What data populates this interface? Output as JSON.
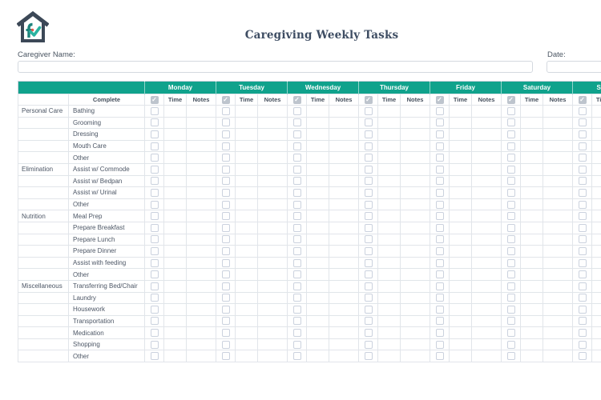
{
  "page": {
    "title": "Caregiving Weekly Tasks"
  },
  "header": {
    "logo_icon": "house-with-check-logo",
    "caregiver_name": {
      "label": "Caregiver Name:",
      "value": ""
    },
    "date": {
      "label": "Date:",
      "value": ""
    }
  },
  "table": {
    "task_column_header": "Complete",
    "days": [
      "Monday",
      "Tuesday",
      "Wednesday",
      "Thursday",
      "Friday",
      "Saturday",
      "Sunday"
    ],
    "day_subcolumns": {
      "complete_icon": "checkmark-icon",
      "time": "Time",
      "notes": "Notes"
    },
    "all_day_cells": {
      "complete_checked": false,
      "time_value": "",
      "notes_value": ""
    },
    "rows": [
      {
        "category": "Personal Care",
        "task": "Bathing"
      },
      {
        "category": "",
        "task": "Grooming"
      },
      {
        "category": "",
        "task": "Dressing"
      },
      {
        "category": "",
        "task": "Mouth Care"
      },
      {
        "category": "",
        "task": "Other"
      },
      {
        "category": "Elimination",
        "task": "Assist w/ Commode"
      },
      {
        "category": "",
        "task": "Assist w/ Bedpan"
      },
      {
        "category": "",
        "task": "Assist w/ Urinal"
      },
      {
        "category": "",
        "task": "Other"
      },
      {
        "category": "Nutrition",
        "task": "Meal Prep"
      },
      {
        "category": "",
        "task": "Prepare Breakfast"
      },
      {
        "category": "",
        "task": "Prepare Lunch"
      },
      {
        "category": "",
        "task": "Prepare Dinner"
      },
      {
        "category": "",
        "task": "Assist with feeding"
      },
      {
        "category": "",
        "task": "Other"
      },
      {
        "category": "Miscellaneous",
        "task": "Transferring Bed/Chair"
      },
      {
        "category": "",
        "task": "Laundry"
      },
      {
        "category": "",
        "task": "Housework"
      },
      {
        "category": "",
        "task": "Transportation"
      },
      {
        "category": "",
        "task": "Medication"
      },
      {
        "category": "",
        "task": "Shopping"
      },
      {
        "category": "",
        "task": "Other"
      }
    ]
  },
  "colors": {
    "header_green": "#10A28C",
    "title_text": "#3E4D63",
    "logo_slate": "#3C4857",
    "logo_teal": "#2BB3A0",
    "logo_accent_red": "#E2574C"
  }
}
